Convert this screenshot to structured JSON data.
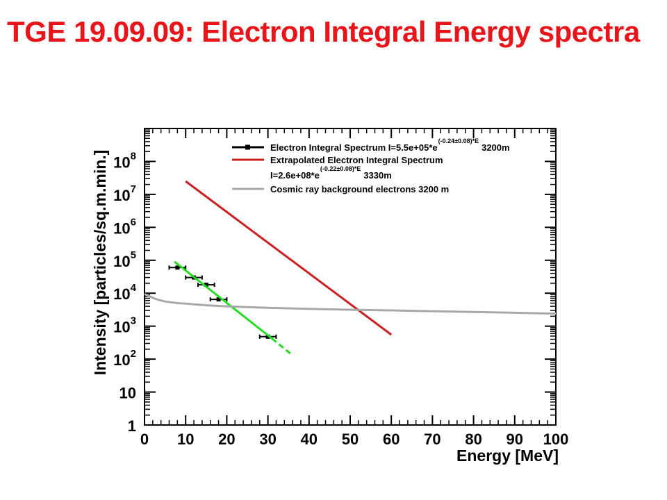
{
  "slide": {
    "title": "TGE 19.09.09: Electron Integral Energy spectra",
    "title_color": "#e8141a"
  },
  "chart_data": {
    "type": "scatter",
    "title": "",
    "xlabel": "Energy [MeV]",
    "ylabel": "Intensity [particles/sq.m.min.]",
    "xlim": [
      0,
      100
    ],
    "ylim": [
      1,
      1000000000
    ],
    "yscale": "log",
    "grid": false,
    "legend_position": "top-right",
    "x_ticks": [
      {
        "value": 0,
        "label": "0"
      },
      {
        "value": 10,
        "label": "10"
      },
      {
        "value": 20,
        "label": "20"
      },
      {
        "value": 30,
        "label": "30"
      },
      {
        "value": 40,
        "label": "40"
      },
      {
        "value": 50,
        "label": "50"
      },
      {
        "value": 60,
        "label": "60"
      },
      {
        "value": 70,
        "label": "70"
      },
      {
        "value": 80,
        "label": "80"
      },
      {
        "value": 90,
        "label": "90"
      },
      {
        "value": 100,
        "label": "100"
      }
    ],
    "y_ticks": [
      {
        "value": 1,
        "base": "1",
        "exp": ""
      },
      {
        "value": 10,
        "base": "10",
        "exp": ""
      },
      {
        "value": 100,
        "base": "10",
        "exp": "2"
      },
      {
        "value": 1000,
        "base": "10",
        "exp": "3"
      },
      {
        "value": 10000,
        "base": "10",
        "exp": "4"
      },
      {
        "value": 100000,
        "base": "10",
        "exp": "5"
      },
      {
        "value": 1000000,
        "base": "10",
        "exp": "6"
      },
      {
        "value": 10000000,
        "base": "10",
        "exp": "7"
      },
      {
        "value": 100000000,
        "base": "10",
        "exp": "8"
      }
    ],
    "series": [
      {
        "kind": "points",
        "color": "#000000",
        "points": [
          {
            "x": 8,
            "xerr": 2,
            "y": 60000
          },
          {
            "x": 12,
            "xerr": 2,
            "y": 30000
          },
          {
            "x": 15,
            "xerr": 2,
            "y": 18000
          },
          {
            "x": 18,
            "xerr": 2,
            "y": 6500
          },
          {
            "x": 30,
            "xerr": 2,
            "y": 480
          }
        ]
      },
      {
        "kind": "fit-line",
        "color": "#22dd22",
        "x": [
          7.3,
          31
        ],
        "y": [
          90000,
          420
        ]
      },
      {
        "kind": "fit-extrapolation",
        "color": "#22dd22",
        "dashed": true,
        "x": [
          31,
          36
        ],
        "y": [
          420,
          130
        ]
      },
      {
        "kind": "line",
        "color": "#cc1f1f",
        "x": [
          10,
          60
        ],
        "y": [
          25000000,
          550
        ]
      },
      {
        "kind": "line",
        "color": "#a8a8a8",
        "x": [
          0,
          1,
          2,
          3,
          5,
          8,
          10,
          15,
          20,
          30,
          40,
          50,
          60,
          70,
          80,
          90,
          100
        ],
        "y": [
          9500,
          8300,
          7300,
          6500,
          5600,
          5000,
          4800,
          4300,
          4000,
          3600,
          3350,
          3150,
          3000,
          2850,
          2700,
          2550,
          2400
        ]
      }
    ],
    "legend": [
      {
        "style": "marker",
        "color": "#000000",
        "label": "Electron Integral Spectrum I=5.5e+05*e",
        "exp": "(-0.24±0.08)*E",
        "suffix": "3200m"
      },
      {
        "style": "line",
        "color": "#cc1f1f",
        "label": "Extrapolated Electron Integral Spectrum",
        "exp": "",
        "suffix": ""
      },
      {
        "style": "none",
        "color": "",
        "label": "I=2.6e+08*e",
        "exp": "(-0.22±0.08)*E",
        "suffix": "3330m"
      },
      {
        "style": "line",
        "color": "#a8a8a8",
        "label": "Cosmic ray background electrons 3200 m",
        "exp": "",
        "suffix": ""
      }
    ]
  }
}
